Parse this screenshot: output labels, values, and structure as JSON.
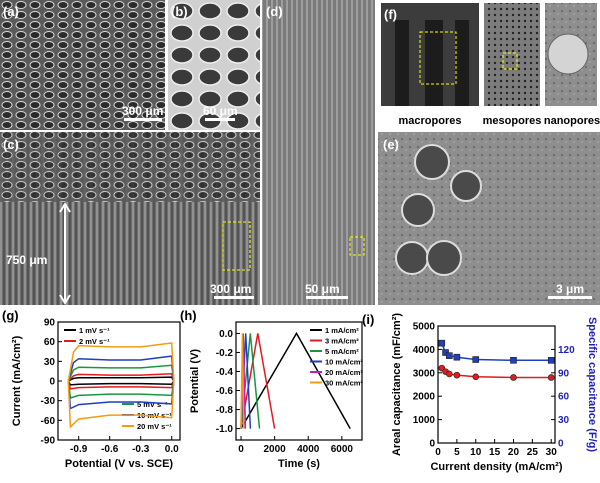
{
  "panels": {
    "a": {
      "label": "(a)",
      "scale": "300 μm"
    },
    "b": {
      "label": "(b)",
      "scale": "60 μm"
    },
    "c": {
      "label": "(c)",
      "scale": "300 μm",
      "thickness": "750 μm"
    },
    "d": {
      "label": "(d)",
      "scale": "50 μm"
    },
    "e": {
      "label": "(e)",
      "scale": "3 μm"
    },
    "f": {
      "label": "(f)",
      "captions": [
        "macropores",
        "mesopores",
        "nanopores"
      ]
    }
  },
  "chart_data": [
    {
      "type": "line",
      "panel_label": "(g)",
      "xlabel": "Potential (V vs. SCE)",
      "ylabel": "Current (mA/cm²)",
      "xlim": [
        -1.1,
        0.08
      ],
      "xticks": [
        -0.9,
        -0.6,
        -0.3,
        {
          "value": 0,
          "label": "0.0"
        }
      ],
      "ylim": [
        -90,
        90
      ],
      "yticks": [
        -90,
        -60,
        -30,
        0,
        30,
        60,
        90
      ],
      "series": [
        {
          "name": "1 mV s⁻¹",
          "color": "#000000",
          "x": [
            -1.0,
            -0.95,
            -0.9,
            -0.6,
            -0.3,
            0.0,
            0.02,
            0.0,
            -0.3,
            -0.6,
            -0.9,
            -0.98,
            -1.0
          ],
          "values": [
            0,
            4,
            5,
            5,
            5,
            6,
            0,
            -5,
            -4,
            -4,
            -5,
            -6,
            0
          ]
        },
        {
          "name": "2 mV s⁻¹",
          "color": "#e41a1c",
          "x": [
            -1.0,
            -0.95,
            -0.9,
            -0.6,
            -0.3,
            0.0,
            0.02,
            0.0,
            -0.3,
            -0.6,
            -0.9,
            -0.98,
            -1.0
          ],
          "values": [
            0,
            8,
            10,
            9,
            9,
            11,
            0,
            -10,
            -9,
            -9,
            -10,
            -12,
            0
          ]
        },
        {
          "name": "5 mV s⁻¹",
          "color": "#1a9641",
          "x": [
            -1.0,
            -0.95,
            -0.9,
            -0.6,
            -0.3,
            0.0,
            0.02,
            0.0,
            -0.3,
            -0.6,
            -0.9,
            -0.98,
            -1.0
          ],
          "values": [
            0,
            17,
            21,
            20,
            20,
            24,
            0,
            -22,
            -20,
            -20,
            -22,
            -26,
            0
          ]
        },
        {
          "name": "10 mV s⁻¹",
          "color": "#1f3fbf",
          "x": [
            -1.0,
            -0.95,
            -0.9,
            -0.6,
            -0.3,
            0.0,
            0.02,
            0.0,
            -0.3,
            -0.6,
            -0.9,
            -0.98,
            -1.0
          ],
          "values": [
            0,
            28,
            34,
            32,
            32,
            38,
            0,
            -35,
            -32,
            -32,
            -36,
            -42,
            0
          ]
        },
        {
          "name": "20 mV s⁻¹",
          "color": "#f39c12",
          "x": [
            -1.0,
            -0.95,
            -0.9,
            -0.6,
            -0.3,
            0.0,
            0.02,
            0.0,
            -0.3,
            -0.6,
            -0.9,
            -0.98,
            -1.0
          ],
          "values": [
            0,
            44,
            54,
            52,
            52,
            58,
            0,
            -56,
            -52,
            -52,
            -58,
            -70,
            0
          ]
        }
      ]
    },
    {
      "type": "line",
      "panel_label": "(h)",
      "xlabel": "Time (s)",
      "ylabel": "Potential (V)",
      "xlim": [
        -300,
        7200
      ],
      "xticks": [
        0,
        2000,
        4000,
        6000
      ],
      "ylim": [
        -1.12,
        0.12
      ],
      "yticks": [
        {
          "value": 0,
          "label": "0.0"
        },
        -0.2,
        -0.4,
        -0.6,
        -0.8,
        {
          "value": -1,
          "label": "-1.0"
        }
      ],
      "series": [
        {
          "name": "1 mA/cm²",
          "color": "#000000",
          "x": [
            0,
            3300,
            6500
          ],
          "values": [
            -1,
            0,
            -1
          ]
        },
        {
          "name": "3 mA/cm²",
          "color": "#e41a1c",
          "x": [
            0,
            1000,
            2000
          ],
          "values": [
            -1,
            0,
            -1
          ]
        },
        {
          "name": "5 mA/cm²",
          "color": "#1a9641",
          "x": [
            0,
            550,
            1100
          ],
          "values": [
            -1,
            0,
            -1
          ]
        },
        {
          "name": "10 mA/cm²",
          "color": "#1f3fbf",
          "x": [
            0,
            280,
            560
          ],
          "values": [
            -1,
            0,
            -1
          ]
        },
        {
          "name": "20 mA/cm²",
          "color": "#c51bb5",
          "x": [
            0,
            130,
            260
          ],
          "values": [
            -1,
            0,
            -1
          ]
        },
        {
          "name": "30 mA/cm²",
          "color": "#f39c12",
          "x": [
            0,
            80,
            160
          ],
          "values": [
            -1,
            0,
            -1
          ]
        }
      ]
    },
    {
      "type": "line",
      "panel_label": "(i)",
      "xlabel": "Current density (mA/cm²)",
      "ylabel": "Areal capacitance (mF/cm²)",
      "y2label": "Specific capacitance (F/g)",
      "xlim": [
        0,
        31
      ],
      "xticks": [
        0,
        5,
        10,
        15,
        20,
        25,
        30
      ],
      "ylim": [
        0,
        5000
      ],
      "yticks": [
        0,
        1000,
        2000,
        3000,
        4000,
        5000
      ],
      "y2lim": [
        0,
        150
      ],
      "y2ticks": [
        0,
        30,
        60,
        90,
        120
      ],
      "y2color": "#1f1fbf",
      "series": [
        {
          "name": "Areal capacitance",
          "color": "#e41a1c",
          "marker": "circle",
          "x": [
            1,
            2,
            3,
            5,
            10,
            20,
            30
          ],
          "values": [
            3200,
            3050,
            2950,
            2900,
            2830,
            2800,
            2800
          ]
        },
        {
          "name": "Specific capacitance",
          "color": "#1f3fbf",
          "marker": "square",
          "axis": "y2",
          "x": [
            1,
            2,
            3,
            5,
            10,
            20,
            30
          ],
          "values": [
            128,
            116,
            112,
            110,
            107,
            106,
            106
          ]
        }
      ]
    }
  ]
}
